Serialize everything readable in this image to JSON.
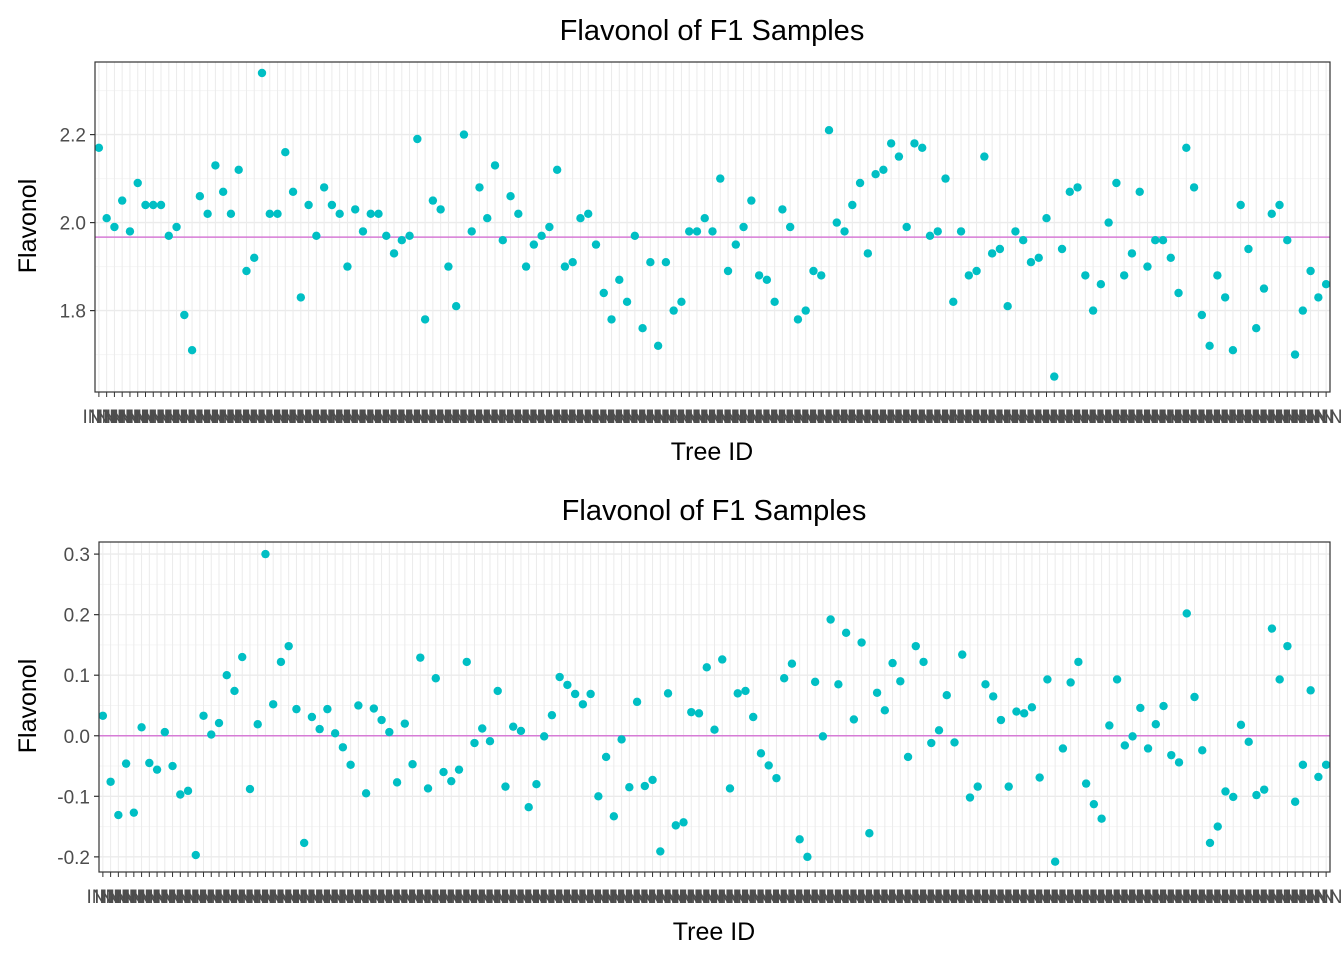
{
  "colors": {
    "point": "#00BFC4",
    "hline": "#D67BD6",
    "grid_major": "#EBEBEB",
    "grid_minor": "#F5F5F5",
    "panel_border": "#333333",
    "tick": "#333333"
  },
  "chart_data": [
    {
      "type": "scatter",
      "title": "Flavonol of F1 Samples",
      "xlabel": "Tree ID",
      "ylabel": "Flavonol",
      "x_tick_label": "INN",
      "ylim": [
        1.615,
        2.365
      ],
      "yticks": [
        1.8,
        2.0,
        2.2
      ],
      "ytick_labels": [
        "1.8",
        "2.0",
        "2.2"
      ],
      "hline": 1.967,
      "grid": true,
      "values": [
        2.17,
        2.01,
        1.99,
        2.05,
        1.98,
        2.09,
        2.04,
        2.04,
        2.04,
        1.97,
        1.99,
        1.79,
        1.71,
        2.06,
        2.02,
        2.13,
        2.07,
        2.02,
        2.12,
        1.89,
        1.92,
        2.34,
        2.02,
        2.02,
        2.16,
        2.07,
        1.83,
        2.04,
        1.97,
        2.08,
        2.04,
        2.02,
        1.9,
        2.03,
        1.98,
        2.02,
        2.02,
        1.97,
        1.93,
        1.96,
        1.97,
        2.19,
        1.78,
        2.05,
        2.03,
        1.9,
        1.81,
        2.2,
        1.98,
        2.08,
        2.01,
        2.13,
        1.96,
        2.06,
        2.02,
        1.9,
        1.95,
        1.97,
        1.99,
        2.12,
        1.9,
        1.91,
        2.01,
        2.02,
        1.95,
        1.84,
        1.78,
        1.87,
        1.82,
        1.97,
        1.76,
        1.91,
        1.72,
        1.91,
        1.8,
        1.82,
        1.98,
        1.98,
        2.01,
        1.98,
        2.1,
        1.89,
        1.95,
        1.99,
        2.05,
        1.88,
        1.87,
        1.82,
        2.03,
        1.99,
        1.78,
        1.8,
        1.89,
        1.88,
        2.21,
        2.0,
        1.98,
        2.04,
        2.09,
        1.93,
        2.11,
        2.12,
        2.18,
        2.15,
        1.99,
        2.18,
        2.17,
        1.97,
        1.98,
        2.1,
        1.82,
        1.98,
        1.88,
        1.89,
        2.15,
        1.93,
        1.94,
        1.81,
        1.98,
        1.96,
        1.91,
        1.92,
        2.01,
        1.65,
        1.94,
        2.07,
        2.08,
        1.88,
        1.8,
        1.86,
        2.0,
        2.09,
        1.88,
        1.93,
        2.07,
        1.9,
        1.96,
        1.96,
        1.92,
        1.84,
        2.17,
        2.08,
        1.79,
        1.72,
        1.88,
        1.83,
        1.71,
        2.04,
        1.94,
        1.76,
        1.85,
        2.02,
        2.04,
        1.96,
        1.7,
        1.8,
        1.89,
        1.83,
        1.86
      ]
    },
    {
      "type": "scatter",
      "title": "Flavonol of F1 Samples",
      "xlabel": "Tree ID",
      "ylabel": "Flavonol",
      "x_tick_label": "INN",
      "ylim": [
        -0.225,
        0.32
      ],
      "yticks": [
        -0.2,
        -0.1,
        0.0,
        0.1,
        0.2,
        0.3
      ],
      "ytick_labels": [
        "-0.2",
        "-0.1",
        "0.0",
        "0.1",
        "0.2",
        "0.3"
      ],
      "hline": 0.0,
      "grid": true,
      "values": [
        0.033,
        -0.076,
        -0.131,
        -0.046,
        -0.127,
        0.014,
        -0.045,
        -0.056,
        0.006,
        -0.05,
        -0.097,
        -0.091,
        -0.197,
        0.033,
        0.002,
        0.021,
        0.1,
        0.074,
        0.13,
        -0.088,
        0.019,
        0.3,
        0.052,
        0.122,
        0.148,
        0.044,
        -0.177,
        0.031,
        0.011,
        0.044,
        0.004,
        -0.019,
        -0.048,
        0.05,
        -0.095,
        0.045,
        0.026,
        0.006,
        -0.077,
        0.02,
        -0.047,
        0.129,
        -0.087,
        0.095,
        -0.06,
        -0.075,
        -0.056,
        0.122,
        -0.012,
        0.012,
        -0.009,
        0.074,
        -0.084,
        0.015,
        0.008,
        -0.118,
        -0.08,
        -0.001,
        0.034,
        0.097,
        0.084,
        0.069,
        0.052,
        0.069,
        -0.1,
        -0.035,
        -0.133,
        -0.006,
        -0.085,
        0.056,
        -0.083,
        -0.073,
        -0.191,
        0.07,
        -0.148,
        -0.143,
        0.039,
        0.037,
        0.113,
        0.01,
        0.126,
        -0.087,
        0.07,
        0.074,
        0.031,
        -0.029,
        -0.049,
        -0.07,
        0.095,
        0.119,
        -0.171,
        -0.2,
        0.089,
        -0.001,
        0.192,
        0.085,
        0.17,
        0.027,
        0.154,
        -0.161,
        0.071,
        0.042,
        0.12,
        0.09,
        -0.035,
        0.148,
        0.122,
        -0.012,
        0.009,
        0.067,
        -0.011,
        0.134,
        -0.102,
        -0.084,
        0.085,
        0.065,
        0.026,
        -0.084,
        0.04,
        0.037,
        0.047,
        -0.069,
        0.093,
        -0.208,
        -0.021,
        0.088,
        0.122,
        -0.079,
        -0.113,
        -0.137,
        0.017,
        0.093,
        -0.016,
        -0.001,
        0.046,
        -0.021,
        0.019,
        0.049,
        -0.032,
        -0.044,
        0.202,
        0.064,
        -0.024,
        -0.177,
        -0.15,
        -0.092,
        -0.101,
        0.018,
        -0.01,
        -0.098,
        -0.089,
        0.177,
        0.093,
        0.148,
        -0.109,
        -0.048,
        0.075,
        -0.068,
        -0.048
      ]
    }
  ]
}
